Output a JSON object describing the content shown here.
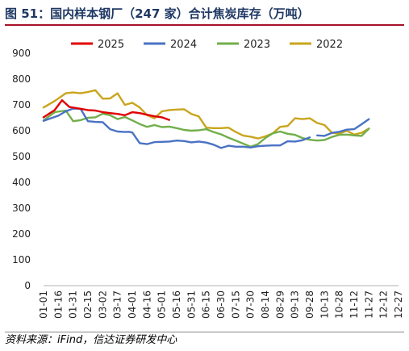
{
  "title": "图 51：国内样本钢厂（247 家）合计焦炭库存（万吨）",
  "source": "资料来源：iFind，信达证券研发中心",
  "chart_data": {
    "type": "line",
    "title": "图 51：国内样本钢厂（247 家）合计焦炭库存（万吨）",
    "xlabel": "",
    "ylabel": "",
    "ylim": [
      0,
      900
    ],
    "yticks": [
      0,
      100,
      200,
      300,
      400,
      500,
      600,
      700,
      800,
      900
    ],
    "grid": false,
    "legend": "top",
    "categories": [
      "01-01",
      "01-16",
      "01-31",
      "02-15",
      "03-02",
      "03-17",
      "04-01",
      "04-16",
      "05-01",
      "05-16",
      "05-31",
      "06-15",
      "06-30",
      "07-15",
      "07-30",
      "08-14",
      "08-29",
      "09-13",
      "09-28",
      "10-13",
      "10-28",
      "11-12",
      "11-27",
      "12-12",
      "12-27"
    ],
    "series": [
      {
        "name": "2025",
        "color": "#e00000",
        "x": [
          0,
          3,
          5,
          7,
          10,
          12,
          14,
          16,
          18,
          20,
          22,
          24,
          26,
          28,
          30,
          32,
          34
        ],
        "y": [
          652,
          680,
          718,
          692,
          685,
          680,
          678,
          672,
          668,
          665,
          660,
          672,
          668,
          662,
          656,
          652,
          642
        ]
      },
      {
        "name": "2024",
        "color": "#4a72c4",
        "x": [
          0,
          4,
          6,
          8,
          10,
          12,
          14,
          16,
          18,
          20,
          22,
          23,
          24,
          26,
          28,
          30,
          32,
          34,
          36,
          38,
          40,
          42,
          44,
          46,
          48,
          50,
          52,
          54,
          56,
          58,
          60,
          62,
          64,
          66,
          68,
          70,
          72
        ],
        "y": [
          638,
          658,
          675,
          686,
          685,
          637,
          634,
          633,
          606,
          597,
          595,
          596,
          593,
          552,
          548,
          556,
          557,
          558,
          562,
          560,
          555,
          558,
          554,
          546,
          533,
          542,
          538,
          538,
          535,
          540,
          542,
          543,
          543,
          559,
          558,
          563,
          574
        ],
        "x2": [
          74,
          76,
          78,
          80,
          82,
          84,
          86,
          88
        ],
        "y2": [
          582,
          580,
          592,
          596,
          604,
          606,
          625,
          645
        ]
      },
      {
        "name": "2023",
        "color": "#72ae4a",
        "x": [
          0,
          3,
          6,
          8,
          10,
          12,
          14,
          16,
          18,
          20,
          22,
          24,
          26,
          28,
          30,
          32,
          34,
          36,
          38,
          40,
          42,
          44,
          46,
          48,
          50,
          52,
          54,
          56,
          58,
          60,
          62,
          64,
          66,
          68,
          70,
          72,
          74,
          76,
          78,
          80,
          82,
          84,
          86,
          88
        ],
        "y": [
          640,
          672,
          678,
          637,
          641,
          650,
          652,
          666,
          660,
          645,
          653,
          640,
          626,
          615,
          622,
          614,
          616,
          610,
          603,
          600,
          602,
          606,
          595,
          586,
          573,
          562,
          550,
          538,
          548,
          572,
          590,
          597,
          588,
          584,
          572,
          565,
          562,
          564,
          576,
          584,
          585,
          582,
          580,
          608
        ]
      },
      {
        "name": "2022",
        "color": "#c9a51d",
        "x": [
          0,
          3,
          6,
          8,
          10,
          12,
          14,
          16,
          18,
          20,
          22,
          24,
          26,
          28,
          30,
          32,
          34,
          36,
          38,
          40,
          42,
          44,
          46,
          48,
          50,
          52,
          54,
          56,
          58,
          60,
          62,
          64,
          66,
          68,
          70,
          72,
          74,
          76,
          78,
          80,
          82,
          84,
          86,
          88
        ],
        "y": [
          690,
          715,
          745,
          748,
          745,
          750,
          757,
          724,
          725,
          745,
          700,
          708,
          690,
          660,
          648,
          675,
          680,
          682,
          683,
          665,
          655,
          612,
          610,
          610,
          612,
          595,
          581,
          577,
          570,
          578,
          590,
          615,
          618,
          648,
          645,
          648,
          630,
          622,
          592,
          588,
          600,
          585,
          592,
          608
        ]
      }
    ]
  }
}
